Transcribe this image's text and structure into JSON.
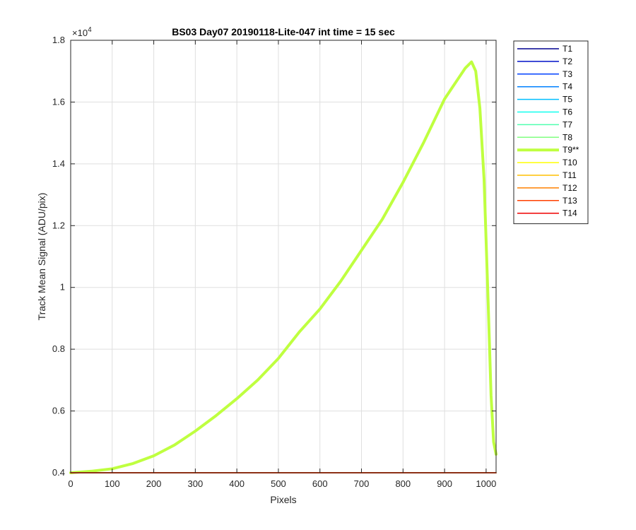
{
  "chart_data": {
    "type": "line",
    "title": "BS03 Day07 20190118-Lite-047 int time = 15 sec",
    "xlabel": "Pixels",
    "ylabel": "Track Mean Signal (ADU/pix)",
    "y_exponent_label": "×10",
    "y_exponent_power": "4",
    "xlim": [
      0,
      1024
    ],
    "ylim": [
      4000,
      18000
    ],
    "xticks": [
      0,
      100,
      200,
      300,
      400,
      500,
      600,
      700,
      800,
      900,
      1000
    ],
    "xtick_labels": [
      "0",
      "100",
      "200",
      "300",
      "400",
      "500",
      "600",
      "700",
      "800",
      "900",
      "1000"
    ],
    "yticks": [
      4000,
      6000,
      8000,
      10000,
      12000,
      14000,
      16000,
      18000
    ],
    "ytick_labels": [
      "0.4",
      "0.6",
      "0.8",
      "1",
      "1.2",
      "1.4",
      "1.6",
      "1.8"
    ],
    "grid": true,
    "legend_position": "outside-right-top",
    "series": [
      {
        "name": "T1",
        "color": "#00008f",
        "width": 1.5,
        "x": [
          0,
          1024
        ],
        "y": [
          4000,
          4000
        ]
      },
      {
        "name": "T2",
        "color": "#0010c8",
        "width": 1.5,
        "x": [
          0,
          1024
        ],
        "y": [
          4000,
          4000
        ]
      },
      {
        "name": "T3",
        "color": "#0040ff",
        "width": 1.5,
        "x": [
          0,
          1024
        ],
        "y": [
          4000,
          4000
        ]
      },
      {
        "name": "T4",
        "color": "#0080ff",
        "width": 1.5,
        "x": [
          0,
          1024
        ],
        "y": [
          4000,
          4000
        ]
      },
      {
        "name": "T5",
        "color": "#00bfff",
        "width": 1.5,
        "x": [
          0,
          1024
        ],
        "y": [
          4000,
          4000
        ]
      },
      {
        "name": "T6",
        "color": "#10ffef",
        "width": 1.5,
        "x": [
          0,
          1024
        ],
        "y": [
          4000,
          4000
        ]
      },
      {
        "name": "T7",
        "color": "#50ffaf",
        "width": 1.5,
        "x": [
          0,
          1024
        ],
        "y": [
          4000,
          4000
        ]
      },
      {
        "name": "T8",
        "color": "#80ff80",
        "width": 1.5,
        "x": [
          0,
          1024
        ],
        "y": [
          4000,
          4000
        ]
      },
      {
        "name": "T9**",
        "color": "#bfff40",
        "width": 4,
        "x": [
          0,
          50,
          100,
          150,
          200,
          250,
          300,
          350,
          400,
          450,
          500,
          550,
          600,
          650,
          700,
          750,
          800,
          850,
          900,
          930,
          950,
          965,
          975,
          985,
          995,
          1005,
          1012,
          1018,
          1024
        ],
        "y": [
          4000,
          4050,
          4130,
          4300,
          4550,
          4900,
          5350,
          5850,
          6400,
          7000,
          7700,
          8550,
          9300,
          10200,
          11200,
          12200,
          13400,
          14700,
          16100,
          16700,
          17100,
          17300,
          17000,
          15800,
          13500,
          9500,
          6500,
          5000,
          4600
        ]
      },
      {
        "name": "T10",
        "color": "#ffff00",
        "width": 1.5,
        "x": [
          0,
          1024
        ],
        "y": [
          4000,
          4000
        ]
      },
      {
        "name": "T11",
        "color": "#ffbf00",
        "width": 1.5,
        "x": [
          0,
          1024
        ],
        "y": [
          4000,
          4000
        ]
      },
      {
        "name": "T12",
        "color": "#ff8000",
        "width": 1.5,
        "x": [
          0,
          1024
        ],
        "y": [
          4000,
          4000
        ]
      },
      {
        "name": "T13",
        "color": "#ff4000",
        "width": 1.5,
        "x": [
          0,
          1024
        ],
        "y": [
          4000,
          4000
        ]
      },
      {
        "name": "T14",
        "color": "#ef0000",
        "width": 1.5,
        "x": [
          0,
          1024
        ],
        "y": [
          4000,
          4000
        ]
      }
    ]
  }
}
